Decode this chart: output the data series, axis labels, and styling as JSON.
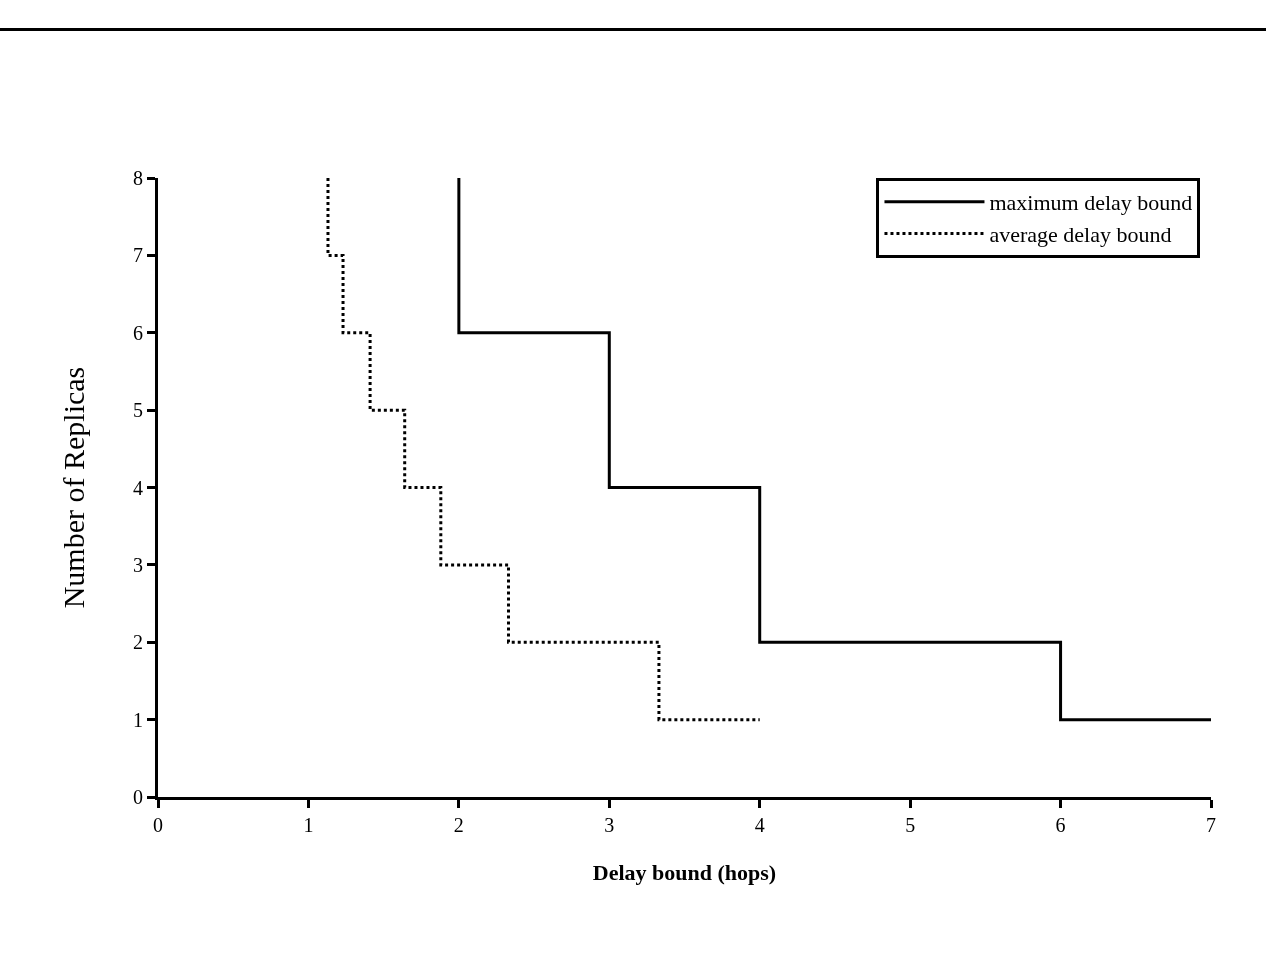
{
  "chart_data": {
    "type": "step",
    "xlabel": "Delay bound (hops)",
    "ylabel": "Number of Replicas",
    "xlim": [
      0,
      7
    ],
    "xticks": [
      0,
      1,
      2,
      3,
      4,
      5,
      6,
      7
    ],
    "ylim": [
      0,
      8
    ],
    "yticks": [
      0,
      1,
      2,
      3,
      4,
      5,
      6,
      7,
      8
    ],
    "grid": false,
    "legend": "top right",
    "marker": "none",
    "series": [
      {
        "name": "maximum delay bound",
        "color": "#000000",
        "line_style": "solid",
        "x": [
          2,
          3,
          4,
          6,
          7
        ],
        "values": [
          8,
          6,
          4,
          2,
          1
        ]
      },
      {
        "name": "average delay bound",
        "color": "#000000",
        "line_style": "dotted",
        "x": [
          1.13,
          1.23,
          1.41,
          1.64,
          1.88,
          2.33,
          3.33,
          4
        ],
        "values": [
          8,
          7,
          6,
          5,
          4,
          3,
          2,
          1
        ]
      }
    ]
  }
}
